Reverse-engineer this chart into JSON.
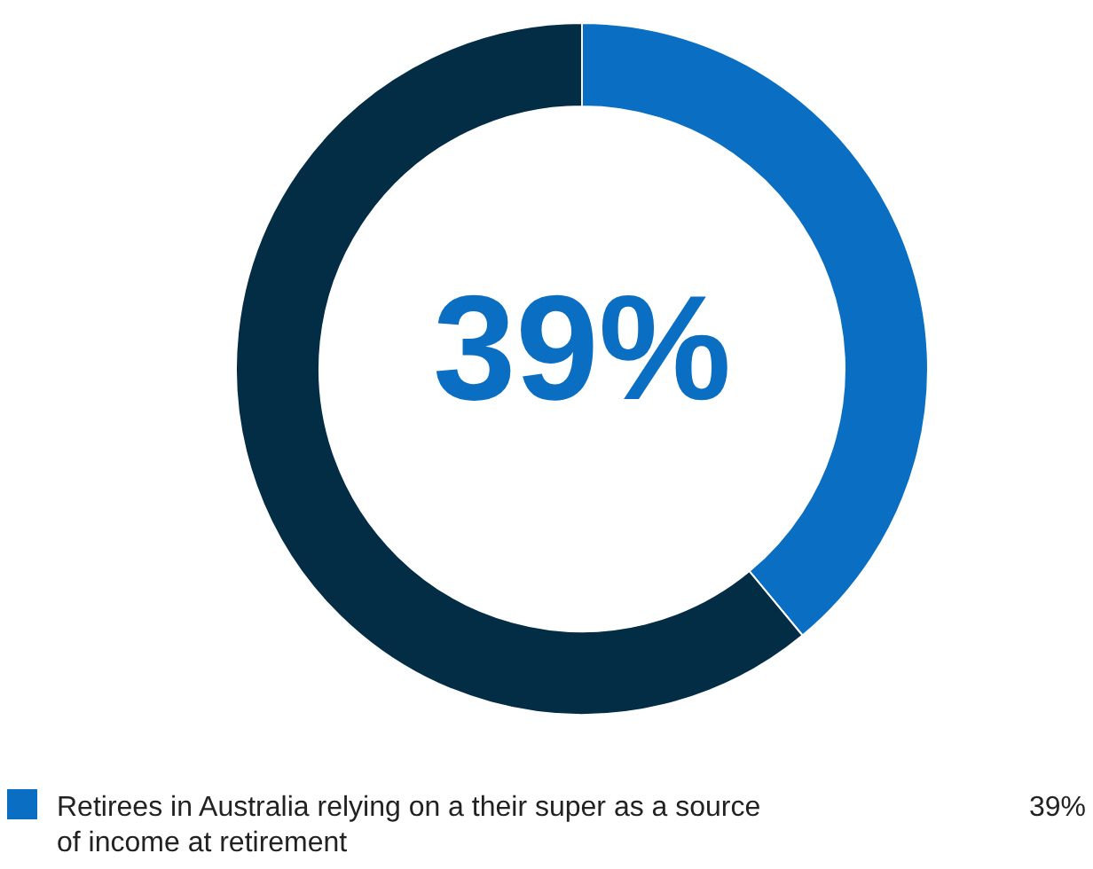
{
  "chart_data": {
    "type": "donut",
    "categories": [
      "Retirees in Australia relying on a their super as a source of income at retirement",
      null
    ],
    "values": [
      39,
      61
    ],
    "colors": [
      "#0a6fc2",
      "#032c45"
    ],
    "value_labels": [
      "39%",
      null
    ],
    "annotations": [
      "39%"
    ],
    "legend": "bottom"
  }
}
